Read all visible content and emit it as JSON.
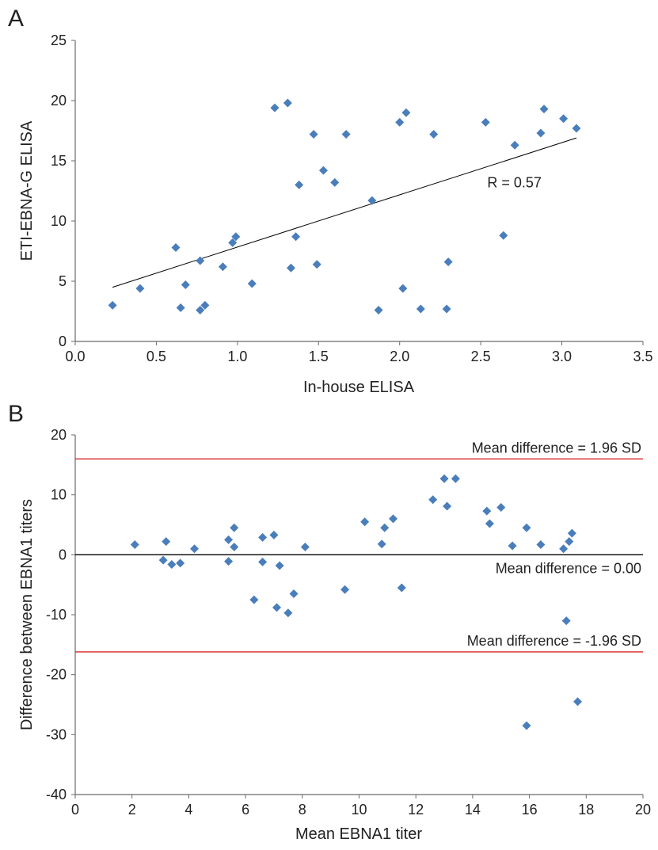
{
  "colors": {
    "marker": "#4A7EBB",
    "axis": "#6B6B6B",
    "limit_line": "#D62728",
    "fit_line": "#000000",
    "zero_line": "#000000"
  },
  "chart_data": [
    {
      "panel_label": "A",
      "type": "scatter",
      "title": "",
      "xlabel": "In-house ELISA",
      "ylabel": "ETI-EBNA-G ELISA",
      "xlim": [
        0.0,
        3.5
      ],
      "ylim": [
        0,
        25
      ],
      "xticks": [
        "0.0",
        "0.5",
        "1.0",
        "1.5",
        "2.0",
        "2.5",
        "3.0",
        "3.5"
      ],
      "yticks": [
        "0",
        "5",
        "10",
        "15",
        "20",
        "25"
      ],
      "grid": false,
      "series": [
        {
          "marker": "diamond",
          "points": [
            [
              0.23,
              3.0
            ],
            [
              0.4,
              4.4
            ],
            [
              0.62,
              7.8
            ],
            [
              0.65,
              2.8
            ],
            [
              0.68,
              4.7
            ],
            [
              0.77,
              6.7
            ],
            [
              0.77,
              2.6
            ],
            [
              0.8,
              3.0
            ],
            [
              0.91,
              6.2
            ],
            [
              0.97,
              8.2
            ],
            [
              0.99,
              8.7
            ],
            [
              1.09,
              4.8
            ],
            [
              1.23,
              19.4
            ],
            [
              1.31,
              19.8
            ],
            [
              1.33,
              6.1
            ],
            [
              1.36,
              8.7
            ],
            [
              1.38,
              13.0
            ],
            [
              1.47,
              17.2
            ],
            [
              1.49,
              6.4
            ],
            [
              1.53,
              14.2
            ],
            [
              1.6,
              13.2
            ],
            [
              1.67,
              17.2
            ],
            [
              1.83,
              11.7
            ],
            [
              1.87,
              2.6
            ],
            [
              2.0,
              18.2
            ],
            [
              2.02,
              4.4
            ],
            [
              2.04,
              19.0
            ],
            [
              2.13,
              2.7
            ],
            [
              2.21,
              17.2
            ],
            [
              2.29,
              2.7
            ],
            [
              2.3,
              6.6
            ],
            [
              2.53,
              18.2
            ],
            [
              2.64,
              8.8
            ],
            [
              2.71,
              16.3
            ],
            [
              2.87,
              17.3
            ],
            [
              2.89,
              19.3
            ],
            [
              3.01,
              18.5
            ],
            [
              3.09,
              17.7
            ]
          ]
        }
      ],
      "trendline": {
        "x": [
          0.23,
          3.09
        ],
        "y": [
          4.5,
          16.9
        ]
      },
      "annotations": [
        {
          "text": "R = 0.57",
          "x": 2.54,
          "y": 12.8
        }
      ]
    },
    {
      "panel_label": "B",
      "type": "scatter",
      "title": "",
      "xlabel": "Mean EBNA1 titer",
      "ylabel": "Difference between EBNA1 titers",
      "xlim": [
        0,
        20
      ],
      "ylim": [
        -40,
        20
      ],
      "xticks": [
        "0",
        "2",
        "4",
        "6",
        "8",
        "10",
        "12",
        "14",
        "16",
        "18",
        "20"
      ],
      "yticks": [
        "-40",
        "-30",
        "-20",
        "-10",
        "0",
        "10",
        "20"
      ],
      "grid": false,
      "series": [
        {
          "marker": "diamond",
          "points": [
            [
              2.1,
              1.7
            ],
            [
              3.1,
              -0.9
            ],
            [
              3.2,
              2.2
            ],
            [
              3.4,
              -1.6
            ],
            [
              3.7,
              -1.4
            ],
            [
              4.2,
              1.0
            ],
            [
              5.4,
              2.5
            ],
            [
              5.4,
              -1.1
            ],
            [
              5.6,
              4.5
            ],
            [
              5.6,
              1.3
            ],
            [
              6.3,
              -7.5
            ],
            [
              6.6,
              2.9
            ],
            [
              6.6,
              -1.2
            ],
            [
              7.0,
              3.3
            ],
            [
              7.1,
              -8.8
            ],
            [
              7.2,
              -1.8
            ],
            [
              7.5,
              -9.7
            ],
            [
              7.7,
              -6.5
            ],
            [
              8.1,
              1.3
            ],
            [
              9.5,
              -5.8
            ],
            [
              10.2,
              5.5
            ],
            [
              10.8,
              1.8
            ],
            [
              10.9,
              4.5
            ],
            [
              11.2,
              6.0
            ],
            [
              11.5,
              -5.5
            ],
            [
              12.6,
              9.2
            ],
            [
              13.0,
              12.7
            ],
            [
              13.1,
              8.1
            ],
            [
              13.4,
              12.7
            ],
            [
              14.5,
              7.3
            ],
            [
              14.6,
              5.2
            ],
            [
              15.0,
              7.9
            ],
            [
              15.4,
              1.5
            ],
            [
              15.9,
              4.5
            ],
            [
              16.4,
              1.7
            ],
            [
              15.9,
              -28.5
            ],
            [
              17.2,
              1.0
            ],
            [
              17.3,
              -11.0
            ],
            [
              17.4,
              2.2
            ],
            [
              17.5,
              3.6
            ],
            [
              17.7,
              -24.5
            ]
          ]
        }
      ],
      "reference_lines": [
        {
          "y": 16.0,
          "label": "Mean difference = 1.96 SD",
          "color": "#D62728"
        },
        {
          "y": 0.0,
          "label": "Mean difference = 0.00",
          "color": "#000000"
        },
        {
          "y": -16.2,
          "label": "Mean difference = -1.96 SD",
          "color": "#D62728"
        }
      ]
    }
  ]
}
